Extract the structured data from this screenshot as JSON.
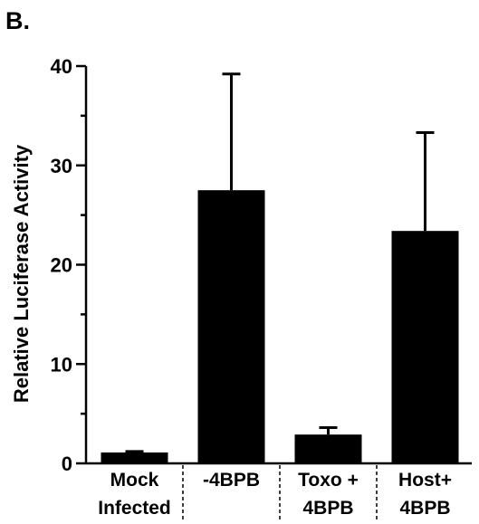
{
  "panel_label": "B.",
  "chart_data": {
    "type": "bar",
    "categories": [
      [
        "Mock",
        "Infected"
      ],
      [
        "-4BPB"
      ],
      [
        "Toxo +",
        "4BPB"
      ],
      [
        "Host+",
        "4BPB"
      ]
    ],
    "values": [
      1.1,
      27.5,
      2.9,
      23.4
    ],
    "error_upper": [
      1.2,
      39.2,
      3.6,
      33.3
    ],
    "ylabel": "Relative Luciferase Activity",
    "ylim": [
      0,
      40
    ],
    "yticks": [
      0,
      10,
      20,
      30,
      40
    ],
    "bar_color": "#000000",
    "grid": false
  }
}
